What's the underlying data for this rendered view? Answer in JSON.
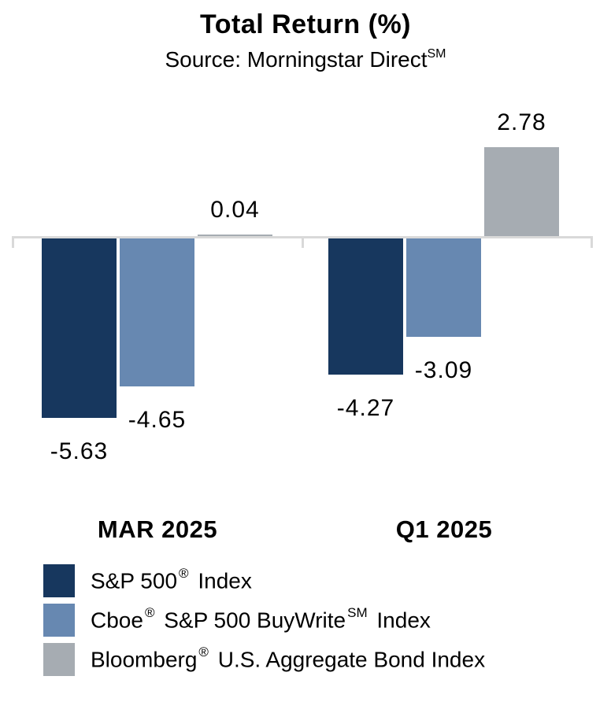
{
  "chart_data": {
    "type": "bar",
    "title": "Total Return (%)",
    "subtitle": "Source: Morningstar Direct",
    "subtitle_sup": "SM",
    "categories": [
      "MAR 2025",
      "Q1 2025"
    ],
    "category_keys": [
      "mar2025",
      "q12025"
    ],
    "series": [
      {
        "key": "sp500",
        "name": "S&P 500® Index",
        "color": "#17375e",
        "values": [
          -5.63,
          -4.27
        ]
      },
      {
        "key": "buywrite",
        "name": "Cboe® S&P 500 BuyWrite SM Index",
        "color": "#6788b1",
        "values": [
          -4.65,
          -3.09
        ]
      },
      {
        "key": "aggbond",
        "name": "Bloomberg® U.S. Aggregate Bond Index",
        "color": "#a6acb2",
        "values": [
          0.04,
          2.78
        ]
      }
    ],
    "value_label_texts": [
      "-5.63",
      "-4.65",
      "0.04",
      "-4.27",
      "-3.09",
      "2.78"
    ],
    "ylim": [
      -7,
      3.5
    ],
    "grid": false,
    "value_labels": true,
    "legend_position": "bottom-left",
    "axis_color": "#d9d9d9",
    "text_color": "#000000",
    "background_color": "#ffffff"
  },
  "legend": {
    "items": [
      {
        "key": "sp500",
        "parts": [
          "S&P 500",
          "®",
          " Index"
        ]
      },
      {
        "key": "buywrite",
        "parts": [
          "Cboe",
          "®",
          " S&P 500 BuyWrite",
          "SM",
          " Index"
        ]
      },
      {
        "key": "aggbond",
        "parts": [
          "Bloomberg",
          "®",
          " U.S. Aggregate Bond Index"
        ]
      }
    ]
  }
}
